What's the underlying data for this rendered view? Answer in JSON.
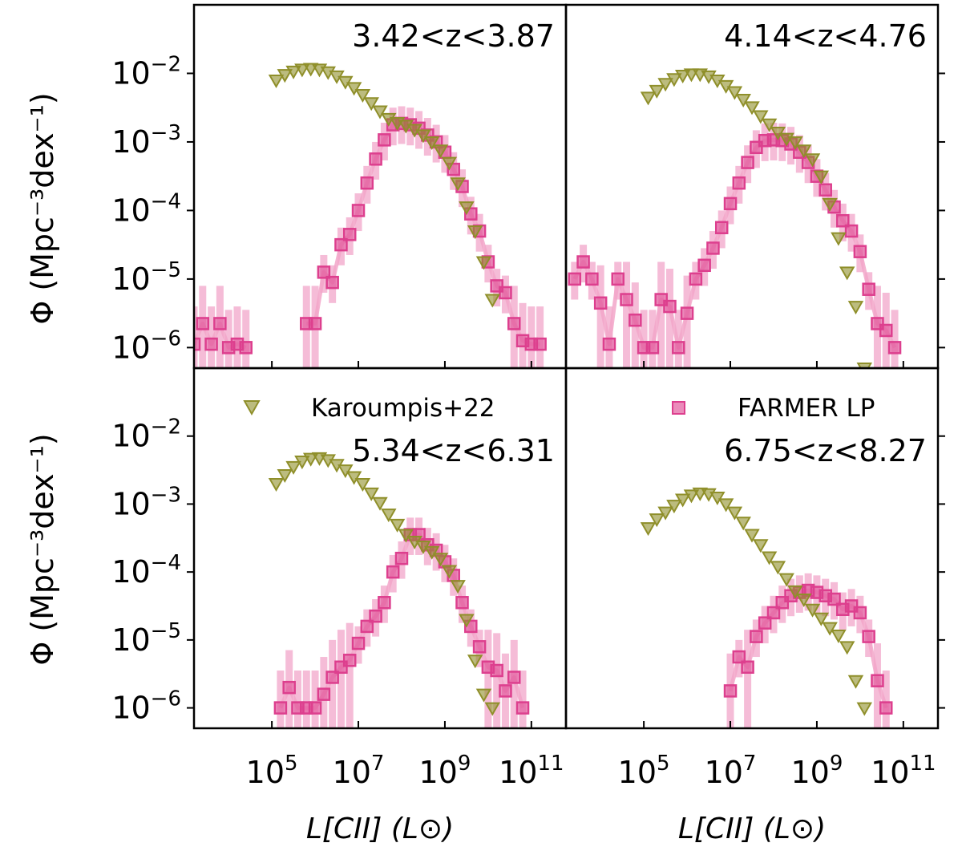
{
  "figure": {
    "ylabel": "Φ (Mpc⁻³dex⁻¹)",
    "xlabel": "L[CII] (L⊙)",
    "x_ticks": [
      {
        "exp": 5,
        "label": "10",
        "sup": "5"
      },
      {
        "exp": 7,
        "label": "10",
        "sup": "7"
      },
      {
        "exp": 9,
        "label": "10",
        "sup": "9"
      },
      {
        "exp": 11,
        "label": "10",
        "sup": "11"
      }
    ],
    "y_ticks": [
      {
        "exp": -2,
        "label": "10",
        "sup": "−2"
      },
      {
        "exp": -3,
        "label": "10",
        "sup": "−3"
      },
      {
        "exp": -4,
        "label": "10",
        "sup": "−4"
      },
      {
        "exp": -5,
        "label": "10",
        "sup": "−5"
      },
      {
        "exp": -6,
        "label": "10",
        "sup": "−6"
      }
    ],
    "colors": {
      "karoumpis": "#8f8f2a",
      "farmer": "#dd3f8e",
      "farmer_light": "#f2a6c9"
    }
  },
  "legend": {
    "karoumpis": "Karoumpis+22",
    "farmer": "FARMER LP"
  },
  "chart_data": [
    {
      "type": "scatter",
      "panel": "top-left",
      "title": "3.42<z<3.87",
      "xscale": "log",
      "yscale": "log",
      "xlim_log10": [
        3.2,
        11.8
      ],
      "ylim_log10": [
        -6.3,
        -1.0
      ],
      "series": [
        {
          "name": "Karoumpis+22",
          "marker": "triangle-down",
          "log_x": [
            5.1,
            5.3,
            5.5,
            5.7,
            5.9,
            6.1,
            6.3,
            6.5,
            6.7,
            6.9,
            7.1,
            7.3,
            7.5,
            7.7,
            7.9,
            8.1,
            8.3,
            8.5,
            8.7,
            8.9,
            9.1,
            9.3,
            9.5,
            9.7,
            9.9,
            10.1
          ],
          "log_y": [
            -2.1,
            -2.02,
            -1.97,
            -1.94,
            -1.93,
            -1.94,
            -1.98,
            -2.04,
            -2.12,
            -2.21,
            -2.31,
            -2.43,
            -2.55,
            -2.66,
            -2.72,
            -2.76,
            -2.82,
            -2.9,
            -3.0,
            -3.12,
            -3.3,
            -3.6,
            -3.95,
            -4.3,
            -4.75,
            -5.3
          ]
        },
        {
          "name": "FARMER LP",
          "marker": "square",
          "log_x": [
            3.2,
            3.4,
            3.6,
            3.8,
            4.0,
            4.2,
            4.4,
            5.2,
            5.4,
            5.6,
            5.8,
            6.0,
            6.2,
            6.4,
            6.6,
            6.8,
            7.0,
            7.2,
            7.4,
            7.6,
            7.8,
            8.0,
            8.2,
            8.4,
            8.6,
            8.8,
            9.0,
            9.2,
            9.4,
            9.6,
            9.8,
            10.0,
            10.2,
            10.4,
            10.6,
            10.8,
            11.0,
            11.2
          ],
          "log_y": [
            -5.95,
            -5.65,
            -5.95,
            -5.65,
            -6.0,
            -5.95,
            -6.0,
            null,
            null,
            null,
            -5.65,
            -5.65,
            -4.9,
            -5.05,
            -4.5,
            -4.35,
            -4.0,
            -3.6,
            -3.25,
            -2.97,
            -2.75,
            -2.73,
            -2.75,
            -2.8,
            -2.9,
            -3.0,
            -3.15,
            -3.4,
            -3.65,
            -4.05,
            -4.3,
            -4.75,
            -5.1,
            -5.2,
            -5.65,
            -5.9,
            -5.95,
            -5.95
          ]
        }
      ]
    },
    {
      "type": "scatter",
      "panel": "top-right",
      "title": "4.14<z<4.76",
      "xscale": "log",
      "yscale": "log",
      "xlim_log10": [
        3.2,
        11.8
      ],
      "ylim_log10": [
        -6.3,
        -1.0
      ],
      "series": [
        {
          "name": "Karoumpis+22",
          "marker": "triangle-down",
          "log_x": [
            5.1,
            5.3,
            5.5,
            5.7,
            5.9,
            6.1,
            6.3,
            6.5,
            6.7,
            6.9,
            7.1,
            7.3,
            7.5,
            7.7,
            7.9,
            8.1,
            8.3,
            8.5,
            8.7,
            8.9,
            9.1,
            9.3,
            9.5,
            9.7,
            9.9,
            10.1
          ],
          "log_y": [
            -2.35,
            -2.25,
            -2.15,
            -2.08,
            -2.03,
            -2.01,
            -2.01,
            -2.04,
            -2.1,
            -2.18,
            -2.27,
            -2.38,
            -2.49,
            -2.62,
            -2.74,
            -2.86,
            -2.95,
            -3.0,
            -3.12,
            -3.25,
            -3.5,
            -3.9,
            -4.4,
            -4.9,
            -5.4,
            -6.3
          ]
        },
        {
          "name": "FARMER LP",
          "marker": "square",
          "log_x": [
            3.4,
            3.6,
            3.8,
            4.0,
            4.2,
            4.4,
            4.6,
            4.8,
            5.0,
            5.2,
            5.4,
            5.6,
            5.8,
            6.0,
            6.2,
            6.4,
            6.6,
            6.8,
            7.0,
            7.2,
            7.4,
            7.6,
            7.8,
            8.0,
            8.2,
            8.4,
            8.6,
            8.8,
            9.0,
            9.2,
            9.4,
            9.6,
            9.8,
            10.0,
            10.2,
            10.4,
            10.6,
            10.8
          ],
          "log_y": [
            -5.0,
            -4.75,
            -5.0,
            -5.35,
            -5.95,
            -5.0,
            -5.3,
            -5.6,
            -6.0,
            -6.0,
            -5.3,
            -5.4,
            -6.0,
            -5.5,
            -5.0,
            -4.8,
            -4.55,
            -4.25,
            -3.9,
            -3.6,
            -3.3,
            -3.08,
            -2.98,
            -2.97,
            -2.98,
            -3.03,
            -3.15,
            -3.3,
            -3.5,
            -3.7,
            -3.95,
            -4.15,
            -4.3,
            -4.6,
            -5.15,
            -5.65,
            -5.75,
            -6.0
          ]
        }
      ]
    },
    {
      "type": "scatter",
      "panel": "bottom-left",
      "title": "5.34<z<6.31",
      "xscale": "log",
      "yscale": "log",
      "xlim_log10": [
        3.2,
        11.8
      ],
      "ylim_log10": [
        -6.3,
        -1.0
      ],
      "series": [
        {
          "name": "Karoumpis+22",
          "marker": "triangle-down",
          "log_x": [
            5.1,
            5.3,
            5.5,
            5.7,
            5.9,
            6.1,
            6.3,
            6.5,
            6.7,
            6.9,
            7.1,
            7.3,
            7.5,
            7.7,
            7.9,
            8.1,
            8.3,
            8.5,
            8.7,
            8.9,
            9.1,
            9.3,
            9.5,
            9.7,
            9.9,
            10.1
          ],
          "log_y": [
            -2.7,
            -2.57,
            -2.45,
            -2.37,
            -2.33,
            -2.32,
            -2.35,
            -2.42,
            -2.5,
            -2.6,
            -2.7,
            -2.84,
            -2.98,
            -3.15,
            -3.3,
            -3.45,
            -3.55,
            -3.62,
            -3.7,
            -3.8,
            -3.98,
            -4.2,
            -4.7,
            -5.3,
            -5.8,
            -6.0
          ]
        },
        {
          "name": "FARMER LP",
          "marker": "square",
          "log_x": [
            5.2,
            5.4,
            5.6,
            5.8,
            6.0,
            6.2,
            6.4,
            6.6,
            6.8,
            7.0,
            7.2,
            7.4,
            7.6,
            7.8,
            8.0,
            8.2,
            8.4,
            8.6,
            8.8,
            9.0,
            9.2,
            9.4,
            9.6,
            9.8,
            10.0,
            10.2,
            10.4,
            10.6,
            10.8
          ],
          "log_y": [
            -6.0,
            -5.7,
            -6.0,
            -6.0,
            -6.0,
            -5.8,
            -5.55,
            -5.4,
            -5.3,
            -5.05,
            -4.8,
            -4.65,
            -4.45,
            -4.0,
            -3.8,
            -3.45,
            -3.45,
            -3.6,
            -3.68,
            -3.85,
            -4.05,
            -4.45,
            -4.8,
            -5.1,
            -5.4,
            -5.45,
            -5.75,
            -5.55,
            -6.0
          ]
        }
      ]
    },
    {
      "type": "scatter",
      "panel": "bottom-right",
      "title": "6.75<z<8.27",
      "xscale": "log",
      "yscale": "log",
      "xlim_log10": [
        3.2,
        11.8
      ],
      "ylim_log10": [
        -6.3,
        -1.0
      ],
      "series": [
        {
          "name": "Karoumpis+22",
          "marker": "triangle-down",
          "log_x": [
            5.1,
            5.3,
            5.5,
            5.7,
            5.9,
            6.1,
            6.3,
            6.5,
            6.7,
            6.9,
            7.1,
            7.3,
            7.5,
            7.7,
            7.9,
            8.1,
            8.3,
            8.5,
            8.7,
            8.9,
            9.1,
            9.3,
            9.5,
            9.7,
            9.9,
            10.1
          ],
          "log_y": [
            -3.35,
            -3.22,
            -3.12,
            -3.02,
            -2.93,
            -2.87,
            -2.84,
            -2.85,
            -2.9,
            -3.0,
            -3.12,
            -3.27,
            -3.45,
            -3.6,
            -3.78,
            -3.92,
            -4.1,
            -4.28,
            -4.4,
            -4.55,
            -4.68,
            -4.82,
            -4.93,
            -5.1,
            -5.6,
            -6.0
          ]
        },
        {
          "name": "FARMER LP",
          "marker": "square",
          "log_x": [
            7.0,
            7.2,
            7.4,
            7.6,
            7.8,
            8.0,
            8.2,
            8.4,
            8.6,
            8.8,
            9.0,
            9.2,
            9.4,
            9.6,
            9.8,
            10.0,
            10.2,
            10.4,
            10.6
          ],
          "log_y": [
            -5.75,
            -5.25,
            -5.4,
            -4.95,
            -4.75,
            -4.6,
            -4.45,
            -4.35,
            -4.3,
            -4.27,
            -4.3,
            -4.35,
            -4.4,
            -4.55,
            -4.5,
            -4.6,
            -4.95,
            -5.6,
            -6.0
          ]
        }
      ]
    }
  ]
}
